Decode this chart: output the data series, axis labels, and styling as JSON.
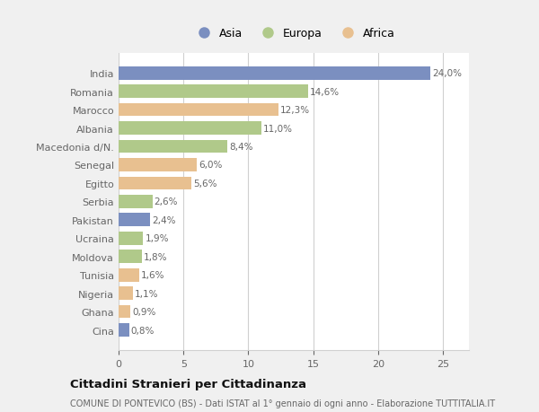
{
  "categories": [
    "India",
    "Romania",
    "Marocco",
    "Albania",
    "Macedonia d/N.",
    "Senegal",
    "Egitto",
    "Serbia",
    "Pakistan",
    "Ucraina",
    "Moldova",
    "Tunisia",
    "Nigeria",
    "Ghana",
    "Cina"
  ],
  "values": [
    24.0,
    14.6,
    12.3,
    11.0,
    8.4,
    6.0,
    5.6,
    2.6,
    2.4,
    1.9,
    1.8,
    1.6,
    1.1,
    0.9,
    0.8
  ],
  "labels": [
    "24,0%",
    "14,6%",
    "12,3%",
    "11,0%",
    "8,4%",
    "6,0%",
    "5,6%",
    "2,6%",
    "2,4%",
    "1,9%",
    "1,8%",
    "1,6%",
    "1,1%",
    "0,9%",
    "0,8%"
  ],
  "continents": [
    "Asia",
    "Europa",
    "Africa",
    "Europa",
    "Europa",
    "Africa",
    "Africa",
    "Europa",
    "Asia",
    "Europa",
    "Europa",
    "Africa",
    "Africa",
    "Africa",
    "Asia"
  ],
  "colors": {
    "Asia": "#7b8fc0",
    "Europa": "#b0c98a",
    "Africa": "#e8c090"
  },
  "legend_labels": [
    "Asia",
    "Europa",
    "Africa"
  ],
  "title": "Cittadini Stranieri per Cittadinanza",
  "subtitle": "COMUNE DI PONTEVICO (BS) - Dati ISTAT al 1° gennaio di ogni anno - Elaborazione TUTTITALIA.IT",
  "xlim": [
    0,
    27
  ],
  "xticks": [
    0,
    5,
    10,
    15,
    20,
    25
  ],
  "bg_color": "#f0f0f0",
  "plot_bg_color": "#ffffff",
  "grid_color": "#d0d0d0",
  "text_color": "#666666",
  "title_color": "#111111",
  "bar_height": 0.72
}
